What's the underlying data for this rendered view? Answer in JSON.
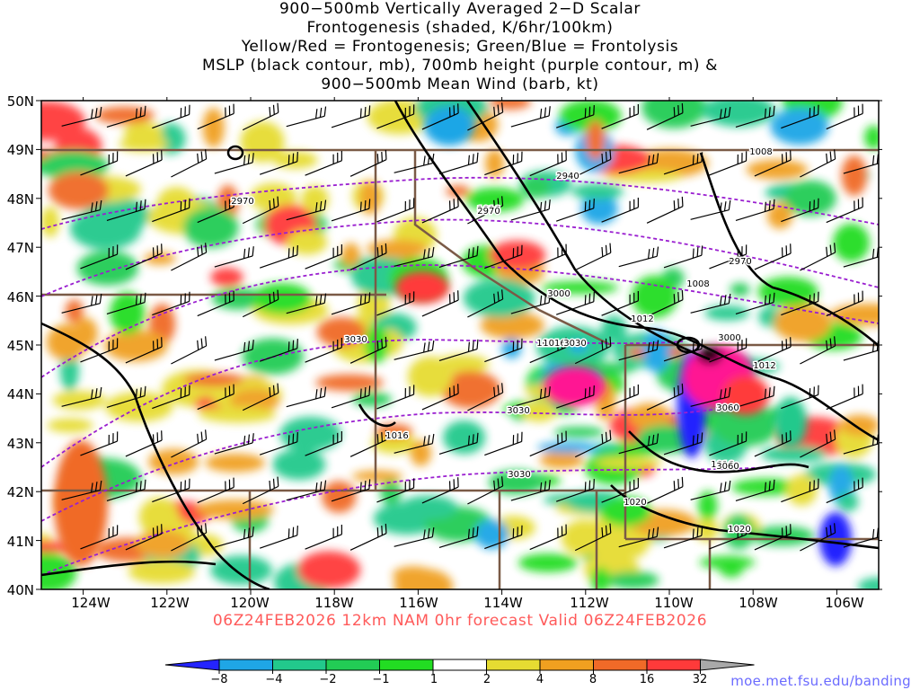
{
  "title_lines": [
    "900−500mb Vertically Averaged 2−D Scalar",
    "Frontogenesis (shaded, K/6hr/100km)",
    "Yellow/Red = Frontogenesis;  Green/Blue = Frontolysis",
    "MSLP (black contour, mb), 700mb height (purple contour, m) &",
    "900−500mb Mean Wind (barb, kt)"
  ],
  "valid_line": "06Z24FEB2026 12km NAM 0hr forecast Valid 06Z24FEB2026",
  "credit": "moe.met.fsu.edu/banding",
  "map": {
    "lon_range": [
      -125,
      -105
    ],
    "lat_range": [
      40,
      50
    ],
    "lat_labels": [
      "50N",
      "49N",
      "48N",
      "47N",
      "46N",
      "45N",
      "44N",
      "43N",
      "42N",
      "41N",
      "40N"
    ],
    "lon_labels": [
      "124W",
      "122W",
      "120W",
      "118W",
      "116W",
      "114W",
      "112W",
      "110W",
      "108W",
      "106W"
    ],
    "mslp_labels": [
      "1008",
      "1012",
      "1008",
      "1012",
      "1016",
      "1012",
      "1016",
      "1016",
      "1020",
      "1020",
      "1016"
    ],
    "height_labels": [
      "2940",
      "2970",
      "2970",
      "2970",
      "3000",
      "3000",
      "3030",
      "3030",
      "3030",
      "3030",
      "3060",
      "3060"
    ]
  },
  "colorbar": {
    "labels": [
      "−8",
      "−4",
      "−2",
      "−1",
      "1",
      "2",
      "4",
      "8",
      "16",
      "32"
    ],
    "colors": [
      "#2424ff",
      "#1fa6e6",
      "#22c98c",
      "#22cc55",
      "#22dd22",
      "#ffffff",
      "#e6dc32",
      "#f0a020",
      "#f06a28",
      "#ff3a3a",
      "#ff1493",
      "#000000",
      "#a9a9a9"
    ],
    "frontolysis_color": "#2424ff",
    "frontogenesis_color": "#ff3a3a"
  }
}
